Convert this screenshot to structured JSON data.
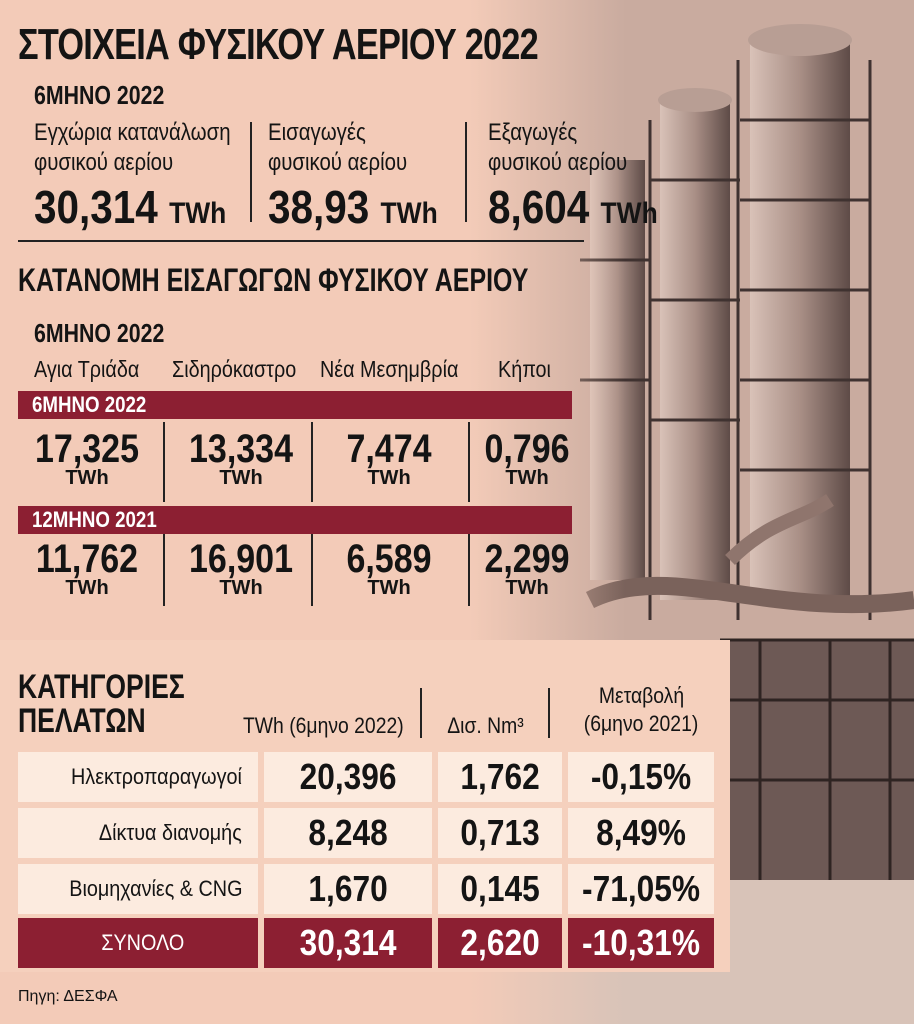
{
  "title": "ΣΤΟΙΧΕΙΑ ΦΥΣΙΚΟΥ ΑΕΡΙΟΥ 2022",
  "period_label": "6ΜΗΝΟ 2022",
  "top_stats": [
    {
      "label_line1": "Εγχώρια κατανάλωση",
      "label_line2": "φυσικού αερίου",
      "value": "30,314",
      "unit": "TWh"
    },
    {
      "label_line1": "Εισαγωγές",
      "label_line2": "φυσικού αερίου",
      "value": "38,93",
      "unit": "TWh"
    },
    {
      "label_line1": "Εξαγωγές",
      "label_line2": "φυσικού αερίου",
      "value": "8,604",
      "unit": "TWh"
    }
  ],
  "imports": {
    "title": "ΚΑΤΑΝΟΜΗ ΕΙΣΑΓΩΓΩΝ ΦΥΣΙΚΟΥ ΑΕΡΙΟΥ",
    "period_label": "6ΜΗΝΟ 2022",
    "terminals": [
      "Αγια Τριάδα",
      "Σιδηρόκαστρο",
      "Νέα Μεσημβρία",
      "Κήποι"
    ],
    "unit": "TWh",
    "periods": [
      {
        "label": "6ΜΗΝΟ 2022",
        "values": [
          "17,325",
          "13,334",
          "7,474",
          "0,796"
        ]
      },
      {
        "label": "12ΜΗΝΟ 2021",
        "values": [
          "11,762",
          "16,901",
          "6,589",
          "2,299"
        ]
      }
    ]
  },
  "customers": {
    "title_line1": "ΚΑΤΗΓΟΡΙΕΣ",
    "title_line2": "ΠΕΛΑΤΩΝ",
    "headers": {
      "twh": "TWh (6μηνο 2022)",
      "nm3": "Δισ. Nm³",
      "change_line1": "Μεταβολή",
      "change_line2": "(6μηνο 2021)"
    },
    "rows": [
      {
        "label": "Ηλεκτροπαραγωγοί",
        "twh": "20,396",
        "nm3": "1,762",
        "change": "-0,15%"
      },
      {
        "label": "Δίκτυα διανομής",
        "twh": "8,248",
        "nm3": "0,713",
        "change": "8,49%"
      },
      {
        "label": "Βιομηχανίες & CNG",
        "twh": "1,670",
        "nm3": "0,145",
        "change": "-71,05%"
      }
    ],
    "total": {
      "label": "ΣΥΝΟΛΟ",
      "twh": "30,314",
      "nm3": "2,620",
      "change": "-10,31%"
    }
  },
  "source": "Πηγη: ΔΕΣΦΑ",
  "colors": {
    "accent": "#8c1f32",
    "background": "#f3cbb8",
    "row": "#fcebdf"
  }
}
